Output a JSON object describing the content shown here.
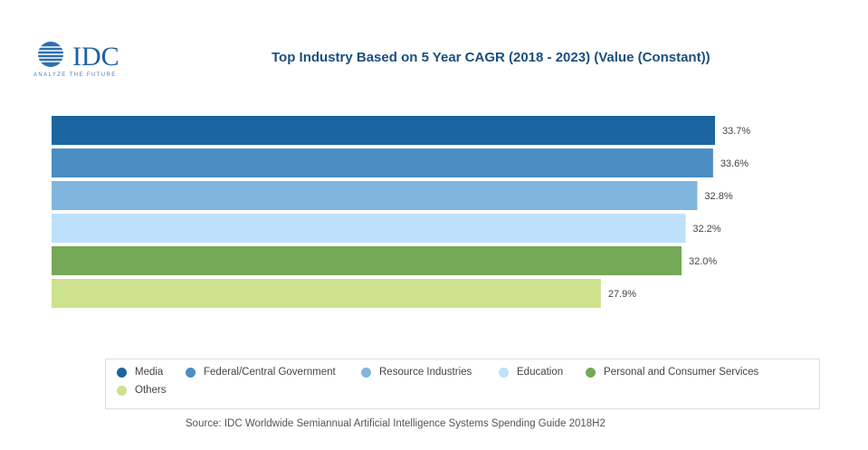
{
  "logo": {
    "text": "IDC",
    "tagline": "ANALYZE THE FUTURE"
  },
  "source": "Source: IDC Worldwide Semiannual Artificial Intelligence Systems Spending Guide 2018H2",
  "chart_data": {
    "type": "bar",
    "orientation": "horizontal",
    "title": "Top Industry Based on 5 Year CAGR (2018 - 2023) (Value (Constant))",
    "categories": [
      "Media",
      "Federal/Central Government",
      "Resource Industries",
      "Education",
      "Personal and Consumer Services",
      "Others"
    ],
    "values": [
      33.7,
      33.6,
      32.8,
      32.2,
      32.0,
      27.9
    ],
    "labels": [
      "33.7%",
      "33.6%",
      "32.8%",
      "32.2%",
      "32.0%",
      "27.9%"
    ],
    "colors": [
      "#1b65a0",
      "#4a8ec4",
      "#80b6de",
      "#bde0fb",
      "#74a957",
      "#cde28c"
    ],
    "xlim": [
      0,
      33.7
    ],
    "grid": false,
    "legend_placement": "bottom"
  }
}
